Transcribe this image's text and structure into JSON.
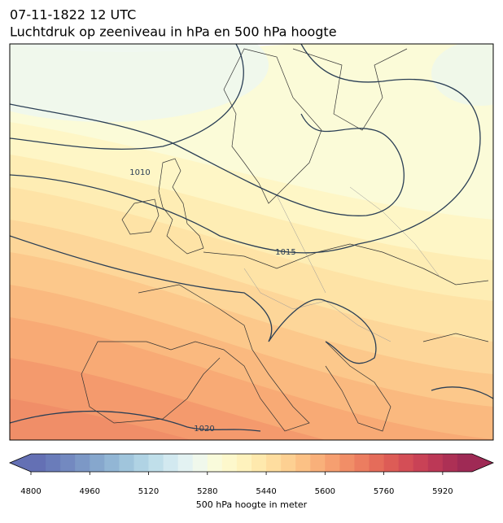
{
  "header": {
    "datetime": "07-11-1822 12 UTC",
    "title": "Luchtdruk op zeeniveau in hPa en 500 hPa hoogte"
  },
  "map": {
    "isobar_labels": [
      1010,
      1015,
      1020
    ]
  },
  "colorbar": {
    "label": "500 hPa hoogte in meter",
    "lim": [
      4800,
      6000
    ],
    "ticks": [
      4800,
      4960,
      5120,
      5280,
      5440,
      5600,
      5760,
      5920
    ],
    "colors": [
      "#6470b4",
      "#6a7cba",
      "#7389c0",
      "#7c98c6",
      "#86a7cd",
      "#92b6d5",
      "#a0c5dc",
      "#b0d3e4",
      "#c0dfea",
      "#d2e9f0",
      "#e3f2f2",
      "#f0f8ec",
      "#f9fbdb",
      "#fdf8cc",
      "#fef2bd",
      "#fee9ad",
      "#fedd9f",
      "#fdd092",
      "#fcc185",
      "#f9b07a",
      "#f69f70",
      "#f18e67",
      "#ec7d60",
      "#e56c5a",
      "#dd5c56",
      "#d44e56",
      "#c94256",
      "#bc3856",
      "#ad3055",
      "#9f2a55"
    ]
  }
}
